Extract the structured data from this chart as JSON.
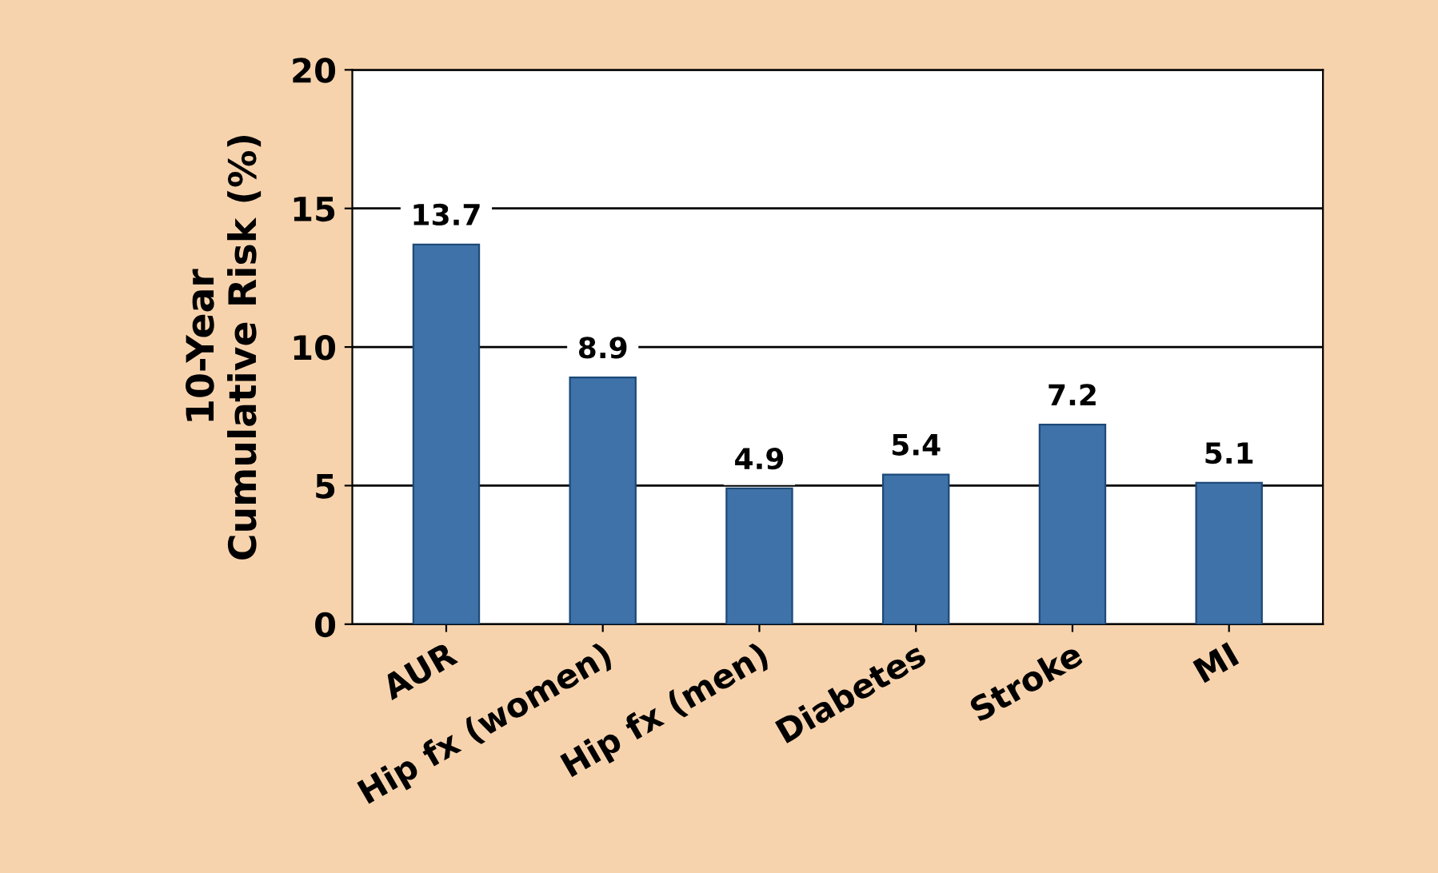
{
  "chart_data": {
    "type": "bar",
    "ylabel": "10-Year\nCumulative Risk (%)",
    "categories": [
      "AUR",
      "Hip fx (women)",
      "Hip fx (men)",
      "Diabetes",
      "Stroke",
      "MI"
    ],
    "values": [
      13.7,
      8.9,
      4.9,
      5.4,
      7.2,
      5.1
    ],
    "color": "#3f72a8",
    "ylim": [
      0,
      20
    ],
    "yticks": [
      0,
      5,
      10,
      15,
      20
    ],
    "grid": "y",
    "data_labels": true
  }
}
